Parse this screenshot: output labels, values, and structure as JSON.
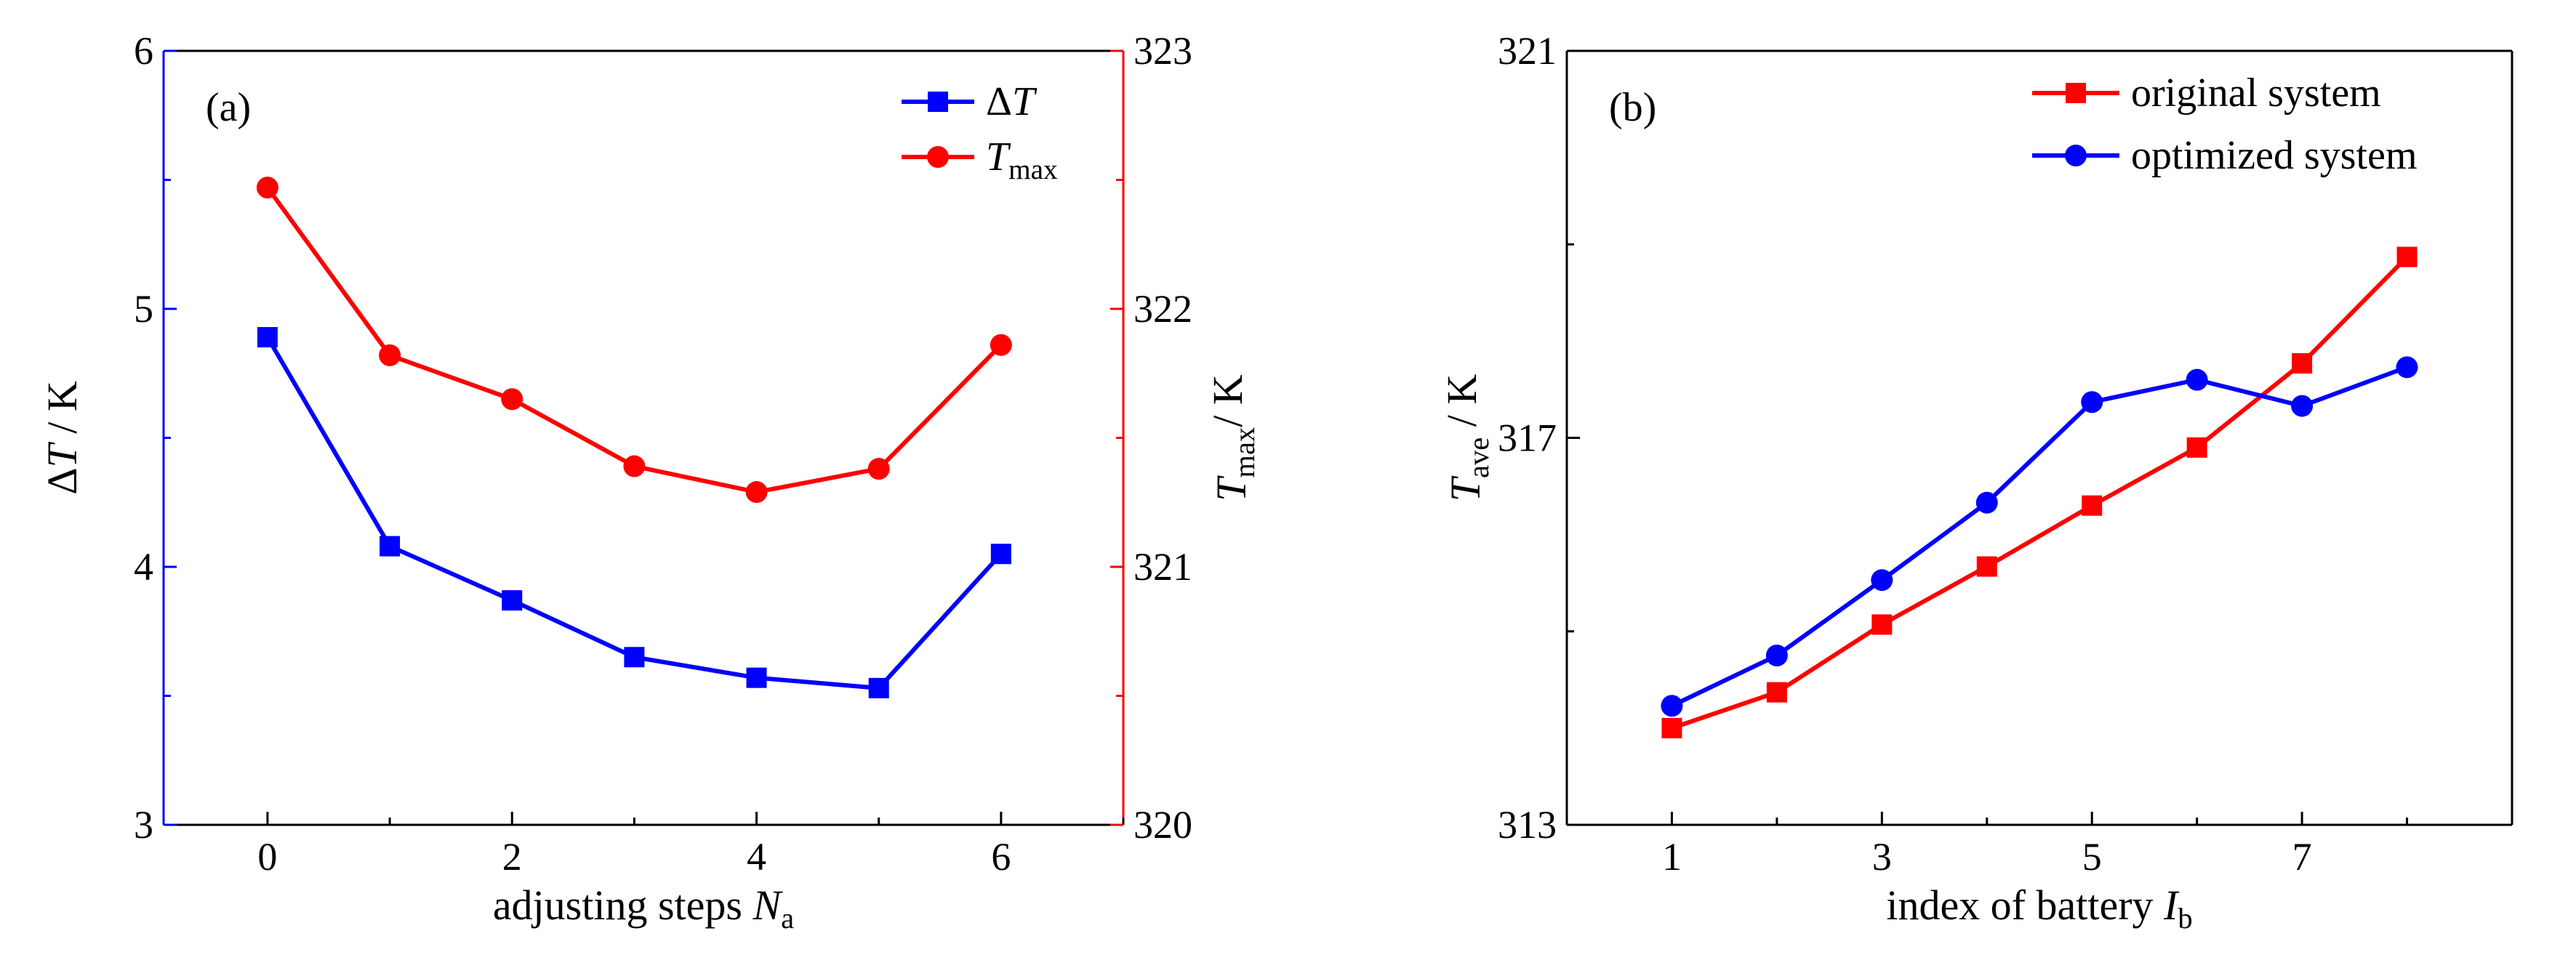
{
  "chart_data": [
    {
      "panel_label": "(a)",
      "type": "line",
      "x": [
        0,
        1,
        2,
        3,
        4,
        5,
        6
      ],
      "xlim": [
        -0.85,
        7.0
      ],
      "x_ticks": [
        "0",
        "2",
        "4",
        "6"
      ],
      "x_tick_values": [
        0,
        2,
        4,
        6
      ],
      "xlabel": {
        "text": "adjusting steps ",
        "symbol": "N",
        "sub": "a"
      },
      "y_left": {
        "ylim": [
          3,
          6
        ],
        "ticks": [
          "3",
          "4",
          "5",
          "6"
        ],
        "tick_values": [
          3,
          4,
          5,
          6
        ],
        "label": {
          "pre": "Δ",
          "symbol": "T",
          "sub": "",
          "post": " / K"
        },
        "color": "#0000ff"
      },
      "y_right": {
        "ylim": [
          320,
          323
        ],
        "ticks": [
          "320",
          "321",
          "322",
          "323"
        ],
        "tick_values": [
          320,
          321,
          322,
          323
        ],
        "label": {
          "pre": "",
          "symbol": "T",
          "sub": "max",
          "post": "/ K"
        },
        "color": "#ff0000"
      },
      "series": [
        {
          "name": "ΔT",
          "name_pre": "Δ",
          "name_symbol": "T",
          "name_sub": "",
          "axis": "left",
          "color": "#0000ff",
          "marker": "square",
          "values": [
            4.89,
            4.08,
            3.87,
            3.65,
            3.57,
            3.53,
            4.05
          ]
        },
        {
          "name": "Tmax",
          "name_pre": "",
          "name_symbol": "T",
          "name_sub": "max",
          "axis": "right",
          "color": "#ff0000",
          "marker": "circle",
          "values": [
            322.47,
            321.82,
            321.65,
            321.39,
            321.29,
            321.38,
            321.86
          ]
        }
      ],
      "legend_position": "top-right",
      "grid": false
    },
    {
      "panel_label": "(b)",
      "type": "line",
      "x": [
        1,
        2,
        3,
        4,
        5,
        6,
        7,
        8
      ],
      "xlim": [
        0.0,
        9.0
      ],
      "x_ticks": [
        "1",
        "3",
        "5",
        "7"
      ],
      "x_tick_values": [
        1,
        3,
        5,
        7
      ],
      "xlabel": {
        "text": "index of battery  ",
        "symbol": "I",
        "sub": "b"
      },
      "y_left": {
        "ylim": [
          313,
          321
        ],
        "ticks": [
          "313",
          "317",
          "321"
        ],
        "tick_values": [
          313,
          317,
          321
        ],
        "label": {
          "pre": "",
          "symbol": "T",
          "sub": "ave",
          "post": " / K"
        },
        "color": "#000000"
      },
      "series": [
        {
          "name": "original system",
          "axis": "left",
          "color": "#ff0000",
          "marker": "square",
          "values": [
            314.0,
            314.37,
            315.07,
            315.67,
            316.3,
            316.9,
            317.77,
            318.87
          ]
        },
        {
          "name": "optimized system",
          "axis": "left",
          "color": "#0000ff",
          "marker": "circle",
          "values": [
            314.23,
            314.75,
            315.53,
            316.33,
            317.37,
            317.6,
            317.33,
            317.73
          ]
        }
      ],
      "legend_position": "top-right",
      "grid": false
    }
  ]
}
